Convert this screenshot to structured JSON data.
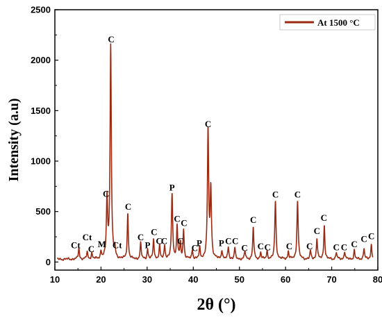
{
  "chart_data": {
    "type": "line",
    "title": "",
    "xlabel": "2θ (°)",
    "ylabel": "Intensity (a.u)",
    "xlim": [
      10,
      80
    ],
    "ylim": [
      -80,
      2500
    ],
    "xticks": [
      10,
      20,
      30,
      40,
      50,
      60,
      70,
      80
    ],
    "yticks": [
      0,
      500,
      1000,
      1500,
      2000,
      2500
    ],
    "grid": false,
    "legend_position": "top-right",
    "line_color": "#9a2a12",
    "series": [
      {
        "name": "At 1500 °C",
        "peaks": [
          [
            15.2,
            110
          ],
          [
            17.0,
            70
          ],
          [
            18.0,
            60
          ],
          [
            20.0,
            75
          ],
          [
            21.3,
            590
          ],
          [
            22.1,
            2110
          ],
          [
            23.0,
            90
          ],
          [
            25.8,
            450
          ],
          [
            28.6,
            160
          ],
          [
            30.1,
            100
          ],
          [
            31.4,
            200
          ],
          [
            32.7,
            130
          ],
          [
            33.8,
            140
          ],
          [
            35.4,
            640
          ],
          [
            36.5,
            330
          ],
          [
            37.2,
            150
          ],
          [
            37.9,
            290
          ],
          [
            39.8,
            90
          ],
          [
            41.4,
            110
          ],
          [
            43.2,
            1265
          ],
          [
            43.8,
            680
          ],
          [
            46.2,
            90
          ],
          [
            47.6,
            120
          ],
          [
            49.0,
            110
          ],
          [
            51.2,
            80
          ],
          [
            53.0,
            320
          ],
          [
            54.6,
            70
          ],
          [
            56.0,
            80
          ],
          [
            57.8,
            575
          ],
          [
            60.6,
            80
          ],
          [
            62.6,
            585
          ],
          [
            65.4,
            80
          ],
          [
            66.8,
            210
          ],
          [
            68.4,
            340
          ],
          [
            71.0,
            70
          ],
          [
            72.8,
            80
          ],
          [
            74.9,
            90
          ],
          [
            77.0,
            110
          ],
          [
            78.6,
            150
          ]
        ]
      }
    ],
    "annotations": [
      {
        "text": "Ct",
        "x": 14.5,
        "y": 110
      },
      {
        "text": "Ct",
        "x": 17.0,
        "y": 190
      },
      {
        "text": "C",
        "x": 17.9,
        "y": 70
      },
      {
        "text": "M",
        "x": 20.2,
        "y": 120
      },
      {
        "text": "C",
        "x": 21.1,
        "y": 620
      },
      {
        "text": "C",
        "x": 22.2,
        "y": 2150
      },
      {
        "text": "Ct",
        "x": 23.5,
        "y": 110
      },
      {
        "text": "C",
        "x": 25.9,
        "y": 490
      },
      {
        "text": "C",
        "x": 28.6,
        "y": 190
      },
      {
        "text": "P",
        "x": 30.1,
        "y": 110
      },
      {
        "text": "C",
        "x": 31.5,
        "y": 240
      },
      {
        "text": "C",
        "x": 32.6,
        "y": 150
      },
      {
        "text": "C",
        "x": 33.7,
        "y": 150
      },
      {
        "text": "P",
        "x": 35.4,
        "y": 680
      },
      {
        "text": "C",
        "x": 36.5,
        "y": 370
      },
      {
        "text": "C",
        "x": 37.2,
        "y": 150
      },
      {
        "text": "C",
        "x": 38.0,
        "y": 330
      },
      {
        "text": "C",
        "x": 40.3,
        "y": 80
      },
      {
        "text": "P",
        "x": 41.3,
        "y": 130
      },
      {
        "text": "C",
        "x": 43.2,
        "y": 1310
      },
      {
        "text": "P",
        "x": 46.1,
        "y": 130
      },
      {
        "text": "C",
        "x": 47.6,
        "y": 150
      },
      {
        "text": "C",
        "x": 49.1,
        "y": 150
      },
      {
        "text": "C",
        "x": 51.1,
        "y": 80
      },
      {
        "text": "C",
        "x": 53.0,
        "y": 360
      },
      {
        "text": "C",
        "x": 54.6,
        "y": 100
      },
      {
        "text": "C",
        "x": 56.1,
        "y": 90
      },
      {
        "text": "C",
        "x": 57.8,
        "y": 610
      },
      {
        "text": "C",
        "x": 60.8,
        "y": 100
      },
      {
        "text": "C",
        "x": 62.6,
        "y": 610
      },
      {
        "text": "C",
        "x": 65.2,
        "y": 100
      },
      {
        "text": "C",
        "x": 66.8,
        "y": 250
      },
      {
        "text": "C",
        "x": 68.3,
        "y": 380
      },
      {
        "text": "C",
        "x": 71.0,
        "y": 90
      },
      {
        "text": "C",
        "x": 72.7,
        "y": 90
      },
      {
        "text": "C",
        "x": 74.9,
        "y": 120
      },
      {
        "text": "C",
        "x": 77.0,
        "y": 170
      },
      {
        "text": "C",
        "x": 78.6,
        "y": 200
      }
    ]
  }
}
